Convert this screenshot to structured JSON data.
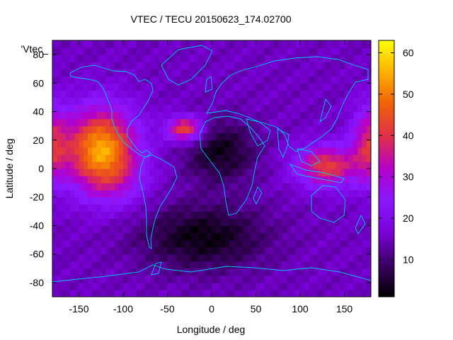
{
  "chart_data": {
    "type": "heatmap",
    "title": "VTEC / TECU 20150623_174.02700",
    "xlabel": "Longitude / deg",
    "ylabel": "Latitude / deg",
    "legend_label": "'Vtec_",
    "xlim": [
      -180,
      180
    ],
    "ylim": [
      -90,
      90
    ],
    "x_ticks": [
      -150,
      -100,
      -50,
      0,
      50,
      100,
      150
    ],
    "y_ticks": [
      -80,
      -60,
      -40,
      -20,
      0,
      20,
      40,
      60,
      80
    ],
    "colorbar": {
      "range": [
        1,
        63
      ],
      "ticks": [
        10,
        20,
        30,
        40,
        50,
        60
      ],
      "palette": [
        "#000000",
        "#3a0062",
        "#7a00d8",
        "#8a18ff",
        "#b400c8",
        "#e0304a",
        "#f0600a",
        "#ffb000",
        "#ffff00"
      ]
    },
    "grid_step_deg": [
      5,
      5
    ],
    "features": [
      {
        "name": "pacific-anomaly",
        "lon": -125,
        "lat": 14,
        "peak": 39,
        "sigma_lon": 28,
        "sigma_lat": 20
      },
      {
        "name": "pacific-south-lobe",
        "lon": -105,
        "lat": -10,
        "peak": 6,
        "sigma_lon": 25,
        "sigma_lat": 14
      },
      {
        "name": "north-atlantic-spot",
        "lon": -30,
        "lat": 28,
        "peak": 29,
        "sigma_lon": 14,
        "sigma_lat": 6
      },
      {
        "name": "east-asia-anomaly",
        "lon": 130,
        "lat": 2,
        "peak": 27,
        "sigma_lon": 24,
        "sigma_lat": 10
      },
      {
        "name": "dateline-east-band",
        "lon": 178,
        "lat": 18,
        "peak": 20,
        "sigma_lon": 14,
        "sigma_lat": 18
      },
      {
        "name": "africa-minimum",
        "lon": 10,
        "lat": 12,
        "peak": -12,
        "sigma_lon": 28,
        "sigma_lat": 15
      },
      {
        "name": "south-atlantic-minimum",
        "lon": -10,
        "lat": -48,
        "peak": -13,
        "sigma_lon": 50,
        "sigma_lat": 16
      }
    ],
    "background_vtec": 15
  }
}
